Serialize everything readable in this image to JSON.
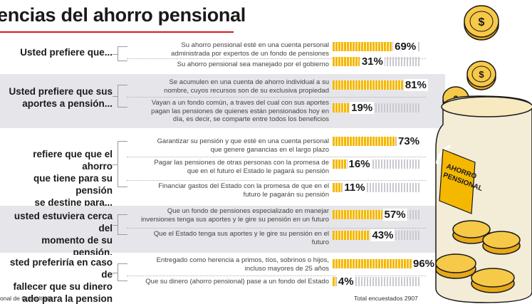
{
  "title": "encias del ahorro pensional",
  "footer": {
    "source": "onal de Consultoría",
    "total": "Total encuestados 2907"
  },
  "jar_label": "AHORRO\nPENSIONAL",
  "colors": {
    "bar": "#f5b800",
    "track_stripes": "#c9c9cf",
    "band": "#e6e6ea",
    "title_rule": "#d71920"
  },
  "chart_data": {
    "type": "bar",
    "orientation": "horizontal",
    "title": "encias del ahorro pensional",
    "xlim": [
      0,
      100
    ],
    "unit": "%",
    "questions": [
      {
        "label": "Usted prefiere que...",
        "answers": [
          {
            "text": "Su ahorro pensional esté en una cuenta personal\nadministrada por expertos de un fondo de pensiones",
            "value": 69
          },
          {
            "text": "Su ahorro pensional sea manejado por el gobierno",
            "value": 31
          }
        ]
      },
      {
        "label": "Usted prefiere que sus\naportes a pensión...",
        "answers": [
          {
            "text": "Se acumulen en una cuenta de ahorro individual a su\nnombre, cuyos recursos son de su exclusiva propiedad",
            "value": 81
          },
          {
            "text": "Vayan a un fondo común, a traves del cual con sus aportes\npagan las pensiones de quienes están pensionados hoy en\ndía, es decir, se comparte entre todos los beneficios",
            "value": 19
          }
        ]
      },
      {
        "label": "refiere que que el ahorro\nque tiene para su pensión\nse destine para...",
        "answers": [
          {
            "text": "Garantizar su pensión y que esté en una cuenta personal\nque genere ganancias en el largo plazo",
            "value": 73
          },
          {
            "text": "Pagar las pensiones de otras personas con la promesa de\nque en el futuro el Estado le pagará su pensión",
            "value": 16
          },
          {
            "text": "Financiar gastos del Estado con la promesa de que en el\nfuturo le pagarán su pensión",
            "value": 11
          }
        ]
      },
      {
        "label": "usted estuviera cerca del\nmomento de su pensión,\ne genera más confianza...",
        "answers": [
          {
            "text": "Que un fondo de pensiones especializado en manejar\ninversiones tenga sus aportes y le gire su pensión en un futuro",
            "value": 57
          },
          {
            "text": "Que el Estado tenga sus aportes y le gire su pensión en el\nfuturo",
            "value": 43
          }
        ]
      },
      {
        "label": "sted preferiría en caso de\nfallecer que su dinero\nado para la pension sea...",
        "answers": [
          {
            "text": "Entregado como herencia a primos, tíos, sobrinos o hijos,\nincluso mayores de 25 años",
            "value": 96
          },
          {
            "text": "Que su dinero (ahorro pensional) pase a un fondo del Estado",
            "value": 4
          }
        ]
      }
    ]
  }
}
